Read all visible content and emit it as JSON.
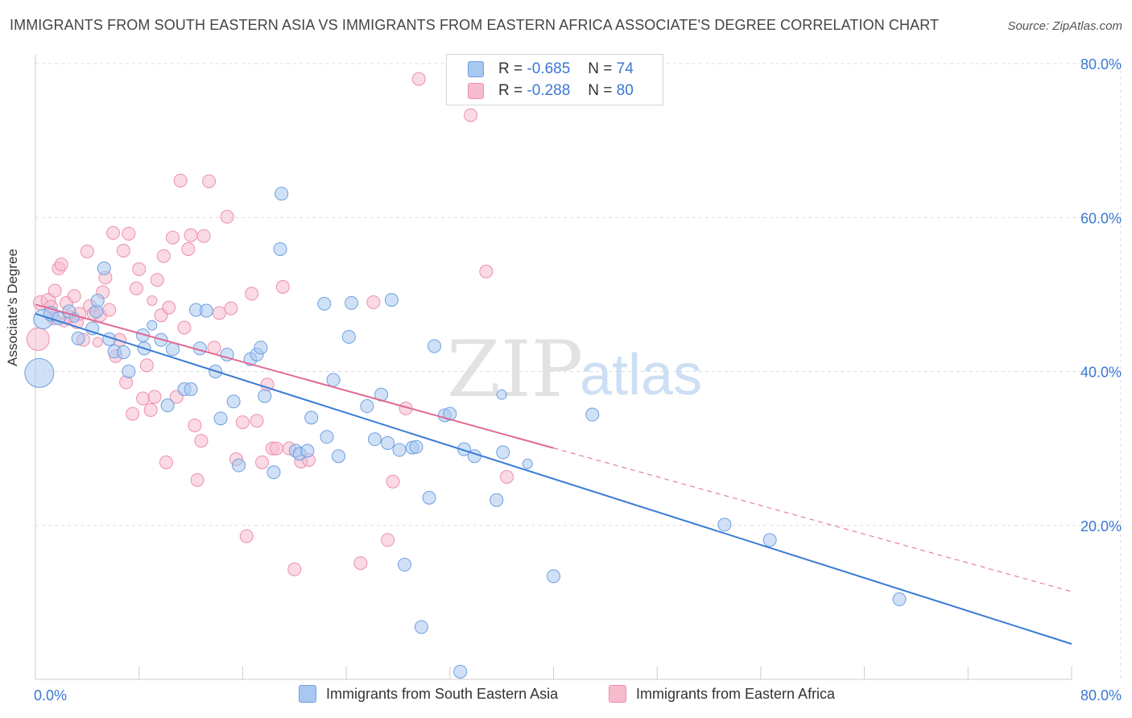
{
  "header": {
    "title": "IMMIGRANTS FROM SOUTH EASTERN ASIA VS IMMIGRANTS FROM EASTERN AFRICA ASSOCIATE'S DEGREE CORRELATION CHART",
    "source": "Source: ZipAtlas.com"
  },
  "legend": {
    "r_label": "R =",
    "n_label": "N =",
    "rows": [
      {
        "r": "-0.685",
        "n": "74"
      },
      {
        "r": "-0.288",
        "n": "80"
      }
    ]
  },
  "watermark": {
    "zip": "ZIP",
    "atlas": "atlas"
  },
  "colors": {
    "blue_fill": "#a9c8f0",
    "blue_stroke": "#6e9fe0",
    "blue_line": "#3a7bd5",
    "pink_fill": "#f6bccd",
    "pink_stroke": "#ee8fab",
    "pink_line": "#e06a93",
    "tick_text": "#3a78d4",
    "grid": "#dddddd"
  },
  "chart_data": {
    "type": "scatter",
    "title": "IMMIGRANTS FROM SOUTH EASTERN ASIA VS IMMIGRANTS FROM EASTERN AFRICA ASSOCIATE'S DEGREE CORRELATION CHART",
    "xlabel": "",
    "ylabel": "Associate's Degree",
    "xlim": [
      0,
      80
    ],
    "ylim": [
      0,
      80
    ],
    "x_tick_labels": [
      "0.0%",
      "80.0%"
    ],
    "y_ticks": [
      20,
      40,
      60,
      80
    ],
    "y_tick_labels": [
      "20.0%",
      "40.0%",
      "60.0%",
      "80.0%"
    ],
    "grid": true,
    "series": [
      {
        "name": "Immigrants from South Eastern Asia",
        "color": "blue",
        "r": -0.685,
        "n": 74,
        "trend": {
          "x0": 0,
          "y0": 47.5,
          "x1": 80,
          "y1": 4.6,
          "dashed_from": null
        },
        "points": [
          [
            0.3,
            39.8,
            18
          ],
          [
            0.6,
            46.8,
            12
          ],
          [
            1.2,
            47.5,
            9
          ],
          [
            1.8,
            46.9,
            8
          ],
          [
            2.6,
            47.8,
            8
          ],
          [
            3.3,
            44.3,
            8
          ],
          [
            4.4,
            45.6,
            8
          ],
          [
            4.7,
            47.8,
            8
          ],
          [
            4.8,
            49.2,
            8
          ],
          [
            5.3,
            53.4,
            8
          ],
          [
            5.7,
            44.2,
            8
          ],
          [
            6.1,
            42.6,
            8
          ],
          [
            6.8,
            42.5,
            8
          ],
          [
            7.2,
            40.0,
            8
          ],
          [
            8.3,
            44.7,
            8
          ],
          [
            8.4,
            43.0,
            8
          ],
          [
            9.7,
            44.1,
            8
          ],
          [
            10.2,
            35.6,
            8
          ],
          [
            10.6,
            42.9,
            8
          ],
          [
            11.5,
            37.7,
            8
          ],
          [
            12.0,
            37.7,
            8
          ],
          [
            12.4,
            48.0,
            8
          ],
          [
            12.7,
            43.0,
            8
          ],
          [
            13.2,
            47.9,
            8
          ],
          [
            13.9,
            40.0,
            8
          ],
          [
            14.3,
            33.9,
            8
          ],
          [
            14.8,
            42.2,
            8
          ],
          [
            15.3,
            36.1,
            8
          ],
          [
            15.7,
            27.8,
            8
          ],
          [
            16.6,
            41.6,
            8
          ],
          [
            17.1,
            42.2,
            8
          ],
          [
            17.4,
            43.1,
            8
          ],
          [
            17.7,
            36.8,
            8
          ],
          [
            18.4,
            26.9,
            8
          ],
          [
            18.9,
            55.9,
            8
          ],
          [
            19.0,
            63.1,
            8
          ],
          [
            20.1,
            29.7,
            8
          ],
          [
            20.4,
            29.3,
            8
          ],
          [
            21.0,
            29.7,
            8
          ],
          [
            21.3,
            34.0,
            8
          ],
          [
            22.3,
            48.8,
            8
          ],
          [
            22.5,
            31.5,
            8
          ],
          [
            23.0,
            38.9,
            8
          ],
          [
            23.4,
            29.0,
            8
          ],
          [
            24.2,
            44.5,
            8
          ],
          [
            24.4,
            48.9,
            8
          ],
          [
            25.6,
            35.5,
            8
          ],
          [
            26.2,
            31.2,
            8
          ],
          [
            26.7,
            37.0,
            8
          ],
          [
            27.2,
            30.7,
            8
          ],
          [
            27.5,
            49.3,
            8
          ],
          [
            28.1,
            29.8,
            8
          ],
          [
            29.1,
            30.1,
            8
          ],
          [
            29.4,
            30.2,
            8
          ],
          [
            29.8,
            6.8,
            8
          ],
          [
            30.4,
            23.6,
            8
          ],
          [
            31.6,
            34.3,
            8
          ],
          [
            32.0,
            34.5,
            8
          ],
          [
            33.1,
            29.9,
            8
          ],
          [
            33.9,
            29.0,
            8
          ],
          [
            35.6,
            23.3,
            8
          ],
          [
            36.1,
            29.5,
            8
          ],
          [
            30.8,
            43.3,
            8
          ],
          [
            32.8,
            1.0,
            8
          ],
          [
            28.5,
            14.9,
            8
          ],
          [
            40.0,
            13.4,
            8
          ],
          [
            43.0,
            34.4,
            8
          ],
          [
            53.2,
            20.1,
            8
          ],
          [
            56.7,
            18.1,
            8
          ],
          [
            66.7,
            10.4,
            8
          ],
          [
            36.0,
            37.0,
            6
          ],
          [
            38.0,
            28.0,
            6
          ],
          [
            9.0,
            46.0,
            6
          ],
          [
            3.0,
            47.0,
            6
          ]
        ]
      },
      {
        "name": "Immigrants from Eastern Africa",
        "color": "pink",
        "r": -0.288,
        "n": 80,
        "trend": {
          "x0": 0,
          "y0": 48.7,
          "x1": 80,
          "y1": 11.4,
          "dashed_from": 40
        },
        "points": [
          [
            0.2,
            44.2,
            14
          ],
          [
            0.4,
            48.9,
            9
          ],
          [
            1.0,
            49.2,
            9
          ],
          [
            1.2,
            48.4,
            8
          ],
          [
            1.4,
            46.9,
            8
          ],
          [
            1.5,
            50.5,
            8
          ],
          [
            1.8,
            53.4,
            8
          ],
          [
            2.0,
            53.9,
            8
          ],
          [
            2.4,
            48.9,
            8
          ],
          [
            2.6,
            47.1,
            8
          ],
          [
            3.0,
            49.8,
            8
          ],
          [
            3.2,
            46.4,
            8
          ],
          [
            3.4,
            47.5,
            8
          ],
          [
            3.7,
            44.1,
            8
          ],
          [
            4.0,
            55.6,
            8
          ],
          [
            4.2,
            48.5,
            8
          ],
          [
            4.5,
            47.5,
            8
          ],
          [
            5.0,
            47.3,
            8
          ],
          [
            5.2,
            50.3,
            8
          ],
          [
            5.4,
            52.2,
            8
          ],
          [
            5.7,
            48.0,
            8
          ],
          [
            6.0,
            58.0,
            8
          ],
          [
            6.2,
            42.0,
            8
          ],
          [
            6.5,
            44.1,
            8
          ],
          [
            6.8,
            55.7,
            8
          ],
          [
            7.0,
            38.6,
            8
          ],
          [
            7.2,
            57.9,
            8
          ],
          [
            7.5,
            34.5,
            8
          ],
          [
            7.8,
            50.8,
            8
          ],
          [
            8.0,
            53.3,
            8
          ],
          [
            8.3,
            36.5,
            8
          ],
          [
            8.6,
            40.8,
            8
          ],
          [
            8.9,
            35.0,
            8
          ],
          [
            9.2,
            36.7,
            8
          ],
          [
            9.4,
            51.9,
            8
          ],
          [
            9.7,
            47.3,
            8
          ],
          [
            9.9,
            55.0,
            8
          ],
          [
            10.1,
            28.2,
            8
          ],
          [
            10.3,
            48.3,
            8
          ],
          [
            10.6,
            57.4,
            8
          ],
          [
            10.9,
            36.7,
            8
          ],
          [
            11.2,
            64.8,
            8
          ],
          [
            11.5,
            45.7,
            8
          ],
          [
            11.8,
            55.9,
            8
          ],
          [
            12.0,
            57.7,
            8
          ],
          [
            12.3,
            33.0,
            8
          ],
          [
            12.5,
            25.9,
            8
          ],
          [
            12.8,
            31.0,
            8
          ],
          [
            13.0,
            57.6,
            8
          ],
          [
            13.4,
            64.7,
            8
          ],
          [
            13.8,
            43.1,
            8
          ],
          [
            14.2,
            47.6,
            8
          ],
          [
            14.8,
            60.1,
            8
          ],
          [
            15.1,
            48.2,
            8
          ],
          [
            15.5,
            28.6,
            8
          ],
          [
            16.0,
            33.4,
            8
          ],
          [
            16.3,
            18.6,
            8
          ],
          [
            16.7,
            50.1,
            8
          ],
          [
            17.1,
            33.6,
            8
          ],
          [
            17.5,
            28.2,
            8
          ],
          [
            17.9,
            38.3,
            8
          ],
          [
            18.3,
            30.0,
            8
          ],
          [
            18.6,
            30.0,
            8
          ],
          [
            19.1,
            51.0,
            8
          ],
          [
            19.6,
            30.0,
            8
          ],
          [
            20.0,
            14.3,
            8
          ],
          [
            20.5,
            28.3,
            8
          ],
          [
            21.1,
            28.5,
            8
          ],
          [
            25.1,
            15.1,
            8
          ],
          [
            26.1,
            49.0,
            8
          ],
          [
            27.2,
            18.1,
            8
          ],
          [
            27.6,
            25.7,
            8
          ],
          [
            28.6,
            35.2,
            8
          ],
          [
            29.6,
            78.0,
            8
          ],
          [
            33.6,
            73.3,
            8
          ],
          [
            34.8,
            53.0,
            8
          ],
          [
            36.4,
            26.3,
            8
          ],
          [
            9.0,
            49.2,
            6
          ],
          [
            2.2,
            46.4,
            6
          ],
          [
            4.8,
            43.8,
            6
          ]
        ]
      }
    ]
  },
  "bottom_legend": [
    {
      "label": "Immigrants from South Eastern Asia"
    },
    {
      "label": "Immigrants from Eastern Africa"
    }
  ]
}
